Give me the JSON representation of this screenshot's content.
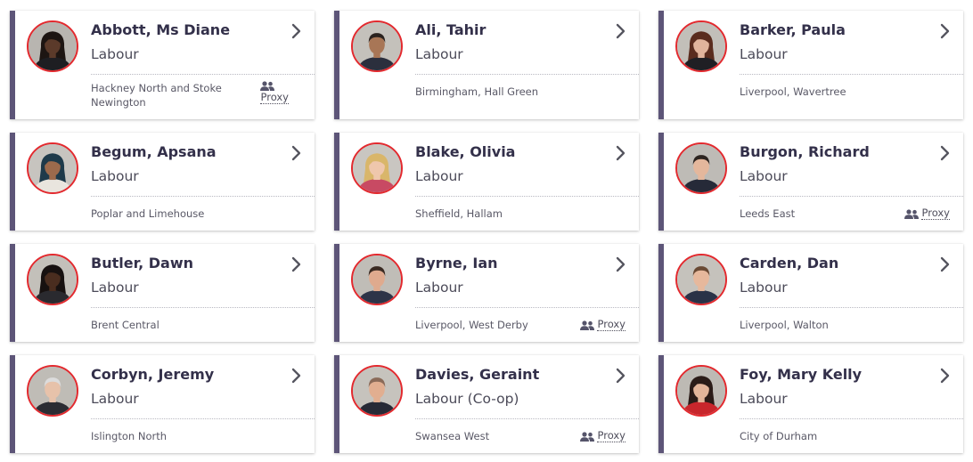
{
  "proxy_label": "Proxy",
  "colors": {
    "accent_bar": "#5d5578",
    "photo_border": "#e3292e",
    "name_text": "#33304a"
  },
  "members": [
    {
      "name": "Abbott, Ms Diane",
      "party": "Labour",
      "constituency": "Hackney North and Stoke Newington",
      "proxy": true,
      "avatar": "portrait-icon"
    },
    {
      "name": "Ali, Tahir",
      "party": "Labour",
      "constituency": "Birmingham, Hall Green",
      "proxy": false,
      "avatar": "portrait-icon"
    },
    {
      "name": "Barker, Paula",
      "party": "Labour",
      "constituency": "Liverpool, Wavertree",
      "proxy": false,
      "avatar": "portrait-icon"
    },
    {
      "name": "Begum, Apsana",
      "party": "Labour",
      "constituency": "Poplar and Limehouse",
      "proxy": false,
      "avatar": "portrait-icon"
    },
    {
      "name": "Blake, Olivia",
      "party": "Labour",
      "constituency": "Sheffield, Hallam",
      "proxy": false,
      "avatar": "portrait-icon"
    },
    {
      "name": "Burgon, Richard",
      "party": "Labour",
      "constituency": "Leeds East",
      "proxy": true,
      "avatar": "portrait-icon"
    },
    {
      "name": "Butler, Dawn",
      "party": "Labour",
      "constituency": "Brent Central",
      "proxy": false,
      "avatar": "portrait-icon"
    },
    {
      "name": "Byrne, Ian",
      "party": "Labour",
      "constituency": "Liverpool, West Derby",
      "proxy": true,
      "avatar": "portrait-icon"
    },
    {
      "name": "Carden, Dan",
      "party": "Labour",
      "constituency": "Liverpool, Walton",
      "proxy": false,
      "avatar": "portrait-icon"
    },
    {
      "name": "Corbyn, Jeremy",
      "party": "Labour",
      "constituency": "Islington North",
      "proxy": false,
      "avatar": "portrait-icon"
    },
    {
      "name": "Davies, Geraint",
      "party": "Labour (Co-op)",
      "constituency": "Swansea West",
      "proxy": true,
      "avatar": "portrait-icon"
    },
    {
      "name": "Foy, Mary Kelly",
      "party": "Labour",
      "constituency": "City of Durham",
      "proxy": false,
      "avatar": "portrait-icon"
    }
  ]
}
